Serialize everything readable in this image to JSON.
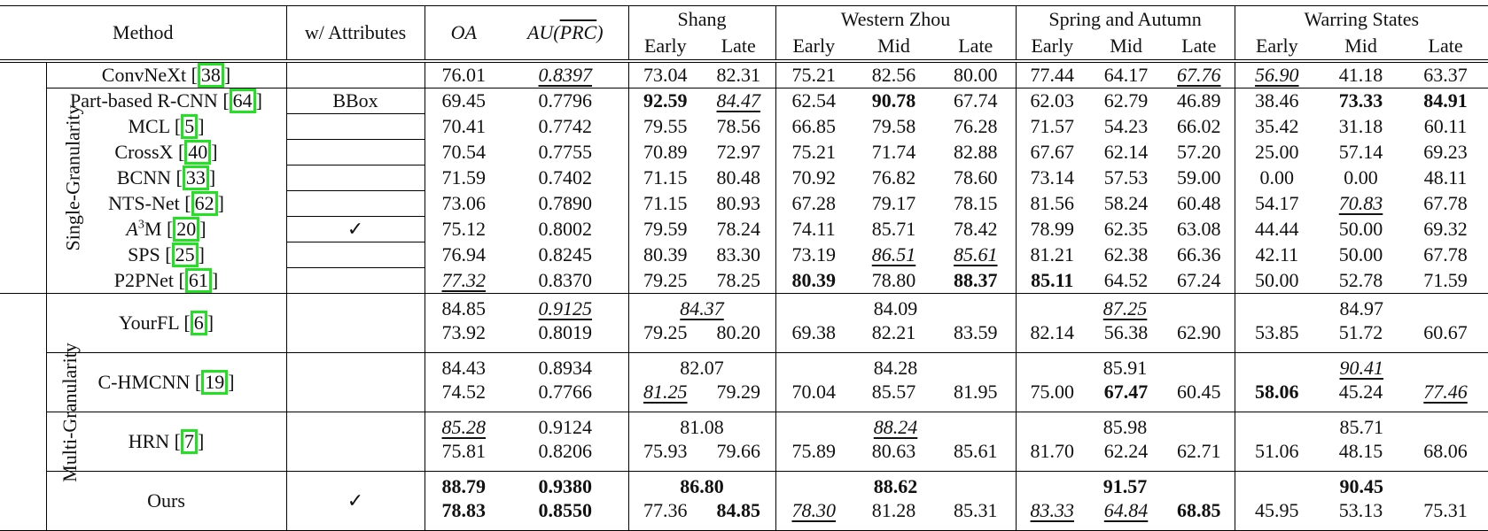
{
  "header": {
    "method": "Method",
    "attributes": "w/ Attributes",
    "oa": "OA",
    "au_prefix": "AU(",
    "au_overline": "PRC",
    "au_suffix": ")",
    "periods": [
      "Shang",
      "Western Zhou",
      "Spring and Autumn",
      "Warring States"
    ],
    "sub": {
      "early": "Early",
      "mid": "Mid",
      "late": "Late"
    }
  },
  "groups": {
    "single": "Single-Granularity",
    "multi": "Multi-Granularity"
  },
  "single_rows": [
    {
      "name": "ConvNeXt",
      "ref": "38",
      "attr": "",
      "cells": [
        "76.01",
        {
          "v": "0.8397",
          "s": "u"
        },
        "73.04",
        "82.31",
        "75.21",
        "82.56",
        "80.00",
        "77.44",
        "64.17",
        {
          "v": "67.76",
          "s": "u"
        },
        {
          "v": "56.90",
          "s": "u"
        },
        "41.18",
        "63.37"
      ]
    },
    {
      "name": "Part-based R-CNN",
      "ref": "64",
      "attr": "BBox",
      "cells": [
        "69.45",
        "0.7796",
        {
          "v": "92.59",
          "s": "b"
        },
        {
          "v": "84.47",
          "s": "u"
        },
        "62.54",
        {
          "v": "90.78",
          "s": "b"
        },
        "67.74",
        "62.03",
        "62.79",
        "46.89",
        "38.46",
        {
          "v": "73.33",
          "s": "b"
        },
        {
          "v": "84.91",
          "s": "b"
        }
      ]
    },
    {
      "name": "MCL",
      "ref": "5",
      "attr": "",
      "cells": [
        "70.41",
        "0.7742",
        "79.55",
        "78.56",
        "66.85",
        "79.58",
        "76.28",
        "71.57",
        "54.23",
        "66.02",
        "35.42",
        "31.18",
        "60.11"
      ]
    },
    {
      "name": "CrossX",
      "ref": "40",
      "attr": "",
      "cells": [
        "70.54",
        "0.7755",
        "70.89",
        "72.97",
        "75.21",
        "71.74",
        "82.88",
        "67.67",
        "62.14",
        "57.20",
        "25.00",
        "57.14",
        "69.23"
      ]
    },
    {
      "name": "BCNN",
      "ref": "33",
      "attr": "",
      "cells": [
        "71.59",
        "0.7402",
        "71.15",
        "80.48",
        "70.92",
        "76.82",
        "78.60",
        "73.14",
        "57.53",
        "59.00",
        "0.00",
        "0.00",
        "48.11"
      ]
    },
    {
      "name": "NTS-Net",
      "ref": "62",
      "attr": "",
      "cells": [
        "73.06",
        "0.7890",
        "71.15",
        "80.93",
        "67.28",
        "79.17",
        "78.15",
        "81.56",
        "58.24",
        "60.48",
        "54.17",
        {
          "v": "70.83",
          "s": "u"
        },
        "67.78"
      ]
    },
    {
      "name": "A",
      "sup": "3",
      "name_suffix": "M",
      "ref": "20",
      "attr": "✓",
      "cells": [
        "75.12",
        "0.8002",
        "79.59",
        "78.24",
        "74.11",
        "85.71",
        "78.42",
        "78.99",
        "62.35",
        "63.08",
        "44.44",
        "50.00",
        "69.32"
      ]
    },
    {
      "name": "SPS",
      "ref": "25",
      "attr": "",
      "cells": [
        "76.94",
        "0.8245",
        "80.39",
        "83.30",
        "73.19",
        {
          "v": "86.51",
          "s": "u"
        },
        {
          "v": "85.61",
          "s": "u"
        },
        "81.21",
        "62.38",
        "66.36",
        "42.11",
        "50.00",
        "67.78"
      ]
    },
    {
      "name": "P2PNet",
      "ref": "61",
      "attr": "",
      "cells": [
        {
          "v": "77.32",
          "s": "u"
        },
        "0.8370",
        "79.25",
        "78.25",
        {
          "v": "80.39",
          "s": "b"
        },
        "78.80",
        {
          "v": "88.37",
          "s": "b"
        },
        {
          "v": "85.11",
          "s": "b"
        },
        "64.52",
        "67.24",
        "50.00",
        "52.78",
        "71.59"
      ]
    }
  ],
  "multi_rows": [
    {
      "name": "YourFL",
      "ref": "6",
      "attr": "",
      "period_row": [
        "84.85",
        {
          "v": "0.9125",
          "s": "u"
        },
        {
          "v": "84.37",
          "s": "u"
        },
        "84.09",
        {
          "v": "87.25",
          "s": "u"
        },
        "84.97"
      ],
      "cells": [
        "73.92",
        "0.8019",
        "79.25",
        "80.20",
        "69.38",
        "82.21",
        "83.59",
        "82.14",
        "56.38",
        "62.90",
        "53.85",
        "51.72",
        "60.67"
      ]
    },
    {
      "name": "C-HMCNN",
      "ref": "19",
      "attr": "",
      "period_row": [
        "84.43",
        "0.8934",
        "82.07",
        "84.28",
        "85.91",
        {
          "v": "90.41",
          "s": "u"
        }
      ],
      "cells": [
        "74.52",
        "0.7766",
        {
          "v": "81.25",
          "s": "u"
        },
        "79.29",
        "70.04",
        "85.57",
        "81.95",
        "75.00",
        {
          "v": "67.47",
          "s": "b"
        },
        "60.45",
        {
          "v": "58.06",
          "s": "b"
        },
        "45.24",
        {
          "v": "77.46",
          "s": "u"
        }
      ]
    },
    {
      "name": "HRN",
      "ref": "7",
      "attr": "",
      "period_row": [
        {
          "v": "85.28",
          "s": "u"
        },
        "0.9124",
        "81.08",
        {
          "v": "88.24",
          "s": "u"
        },
        "85.98",
        "85.71"
      ],
      "cells": [
        "75.81",
        "0.8206",
        "75.93",
        "79.66",
        "75.89",
        "80.63",
        "85.61",
        "81.70",
        "62.24",
        "62.71",
        "51.06",
        "48.15",
        "68.06"
      ]
    },
    {
      "name": "Ours",
      "ref": "",
      "attr": "✓",
      "period_row": [
        {
          "v": "88.79",
          "s": "b"
        },
        {
          "v": "0.9380",
          "s": "b"
        },
        {
          "v": "86.80",
          "s": "b"
        },
        {
          "v": "88.62",
          "s": "b"
        },
        {
          "v": "91.57",
          "s": "b"
        },
        {
          "v": "90.45",
          "s": "b"
        }
      ],
      "cells": [
        {
          "v": "78.83",
          "s": "b"
        },
        {
          "v": "0.8550",
          "s": "b"
        },
        "77.36",
        {
          "v": "84.85",
          "s": "b"
        },
        {
          "v": "78.30",
          "s": "u"
        },
        "81.28",
        "85.31",
        {
          "v": "83.33",
          "s": "u"
        },
        {
          "v": "64.84",
          "s": "u"
        },
        {
          "v": "68.85",
          "s": "b"
        },
        "45.95",
        "53.13",
        "75.31"
      ]
    }
  ],
  "colors": {
    "citation_box": "#22e022"
  }
}
